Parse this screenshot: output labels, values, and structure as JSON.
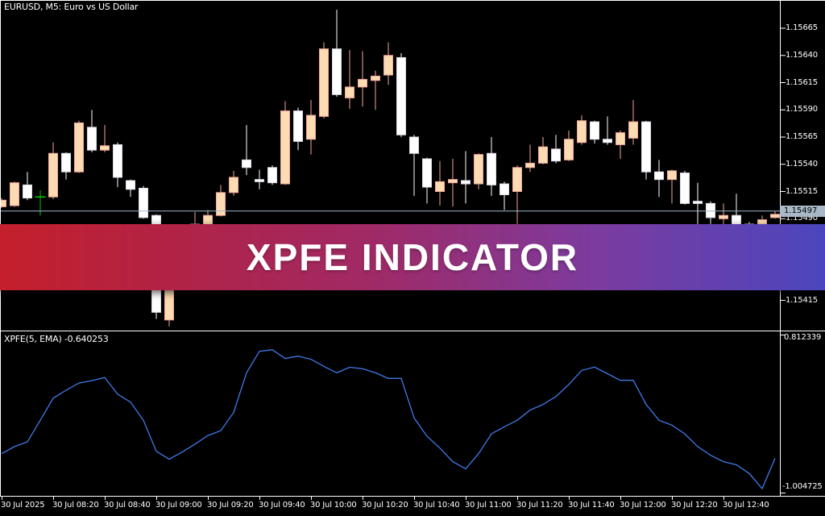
{
  "window": {
    "title": "EURUSD, M5: Euro vs US Dollar"
  },
  "banner": {
    "text": "XPFE INDICATOR",
    "gradient": [
      [
        "#C41F2B",
        "0%"
      ],
      [
        "#B02347",
        "22%"
      ],
      [
        "#A02A66",
        "45%"
      ],
      [
        "#7C3B9E",
        "72%"
      ],
      [
        "#4B46BE",
        "100%"
      ]
    ]
  },
  "colors": {
    "background": "#000000",
    "frame": "#FFFFFF",
    "text": "#FFFFFF",
    "bull_fill": "#FBDCB2",
    "bull_edge": "#F5A79C",
    "bear_fill": "#FFFFFF",
    "bear_edge": "#DCDCE8",
    "bear_wick": "#FFFFFF",
    "doji": "#00C000",
    "indicator_line": "#3E7BE8",
    "bid_line": "#A3B9CB",
    "price_tag_bg": "#A8B8C6",
    "price_tag_text": "#000000"
  },
  "main": {
    "current_price_label": "1.15497",
    "current_price": 1.15497
  },
  "indicator": {
    "label_name": "XPFE(5, EMA)",
    "label_value": "-0.640253"
  },
  "chart_data": [
    {
      "type": "candlestick",
      "title": "EURUSD, M5: Euro vs US Dollar",
      "symbol": "EURUSD",
      "timeframe": "M5",
      "grid": false,
      "y_axis": {
        "side": "right",
        "ticks": [
          1.15665,
          1.1564,
          1.15615,
          1.1559,
          1.15565,
          1.1554,
          1.15515,
          1.1549,
          1.15415
        ],
        "tick_labels": [
          "1.15665",
          "1.15640",
          "1.15615",
          "1.15590",
          "1.15565",
          "1.15540",
          "1.15515",
          "1.15490",
          "1.15415"
        ],
        "current_price": 1.15497
      },
      "x_axis": {
        "tick_labels": [
          "30 Jul 2025",
          "30 Jul 08:20",
          "30 Jul 08:40",
          "30 Jul 09:00",
          "30 Jul 09:20",
          "30 Jul 09:40",
          "30 Jul 10:00",
          "30 Jul 10:20",
          "30 Jul 10:40",
          "30 Jul 11:00",
          "30 Jul 11:20",
          "30 Jul 11:40",
          "30 Jul 12:00",
          "30 Jul 12:20",
          "30 Jul 12:40"
        ],
        "tick_candle_indices": [
          0,
          4,
          8,
          12,
          16,
          20,
          24,
          28,
          32,
          36,
          40,
          44,
          48,
          52,
          56
        ]
      },
      "candles": [
        {
          "t": "08:00",
          "o": 1.15501,
          "h": 1.15509,
          "l": 1.155,
          "c": 1.15507,
          "d": "up"
        },
        {
          "t": "08:05",
          "o": 1.15502,
          "h": 1.15524,
          "l": 1.15501,
          "c": 1.15523,
          "d": "up"
        },
        {
          "t": "08:10",
          "o": 1.15521,
          "h": 1.15533,
          "l": 1.15507,
          "c": 1.15509,
          "d": "down"
        },
        {
          "t": "08:15",
          "o": 1.1551,
          "h": 1.15516,
          "l": 1.15493,
          "c": 1.1551,
          "d": "doji"
        },
        {
          "t": "08:20",
          "o": 1.1551,
          "h": 1.1556,
          "l": 1.15508,
          "c": 1.1555,
          "d": "up"
        },
        {
          "t": "08:25",
          "o": 1.1555,
          "h": 1.15551,
          "l": 1.15526,
          "c": 1.15533,
          "d": "down"
        },
        {
          "t": "08:30",
          "o": 1.15533,
          "h": 1.1558,
          "l": 1.15532,
          "c": 1.15578,
          "d": "up"
        },
        {
          "t": "08:35",
          "o": 1.15574,
          "h": 1.1559,
          "l": 1.15551,
          "c": 1.15553,
          "d": "down"
        },
        {
          "t": "08:40",
          "o": 1.15553,
          "h": 1.15576,
          "l": 1.15551,
          "c": 1.15557,
          "d": "up"
        },
        {
          "t": "08:45",
          "o": 1.15558,
          "h": 1.1556,
          "l": 1.15519,
          "c": 1.15528,
          "d": "down"
        },
        {
          "t": "08:50",
          "o": 1.15525,
          "h": 1.15526,
          "l": 1.1551,
          "c": 1.15517,
          "d": "down"
        },
        {
          "t": "08:55",
          "o": 1.15518,
          "h": 1.1552,
          "l": 1.1549,
          "c": 1.15491,
          "d": "down"
        },
        {
          "t": "09:00",
          "o": 1.15493,
          "h": 1.15494,
          "l": 1.15398,
          "c": 1.15404,
          "d": "down"
        },
        {
          "t": "09:05",
          "o": 1.15397,
          "h": 1.15441,
          "l": 1.15391,
          "c": 1.15439,
          "d": "up"
        },
        {
          "t": "09:10",
          "o": 1.15447,
          "h": 1.15478,
          "l": 1.15445,
          "c": 1.15476,
          "d": "up"
        },
        {
          "t": "09:15",
          "o": 1.15462,
          "h": 1.15496,
          "l": 1.1546,
          "c": 1.15485,
          "d": "up"
        },
        {
          "t": "09:20",
          "o": 1.15469,
          "h": 1.15498,
          "l": 1.15467,
          "c": 1.15493,
          "d": "up"
        },
        {
          "t": "09:25",
          "o": 1.15493,
          "h": 1.15521,
          "l": 1.15492,
          "c": 1.15514,
          "d": "up"
        },
        {
          "t": "09:30",
          "o": 1.15514,
          "h": 1.15534,
          "l": 1.15511,
          "c": 1.15528,
          "d": "up"
        },
        {
          "t": "09:35",
          "o": 1.15544,
          "h": 1.15576,
          "l": 1.1553,
          "c": 1.15537,
          "d": "down"
        },
        {
          "t": "09:40",
          "o": 1.15526,
          "h": 1.15535,
          "l": 1.15517,
          "c": 1.15524,
          "d": "down"
        },
        {
          "t": "09:45",
          "o": 1.15537,
          "h": 1.15539,
          "l": 1.15521,
          "c": 1.15523,
          "d": "down"
        },
        {
          "t": "09:50",
          "o": 1.15522,
          "h": 1.15598,
          "l": 1.15521,
          "c": 1.15589,
          "d": "up"
        },
        {
          "t": "09:55",
          "o": 1.15589,
          "h": 1.15592,
          "l": 1.15553,
          "c": 1.15561,
          "d": "down"
        },
        {
          "t": "10:00",
          "o": 1.15563,
          "h": 1.15599,
          "l": 1.15549,
          "c": 1.15585,
          "d": "up"
        },
        {
          "t": "10:05",
          "o": 1.15584,
          "h": 1.15652,
          "l": 1.15582,
          "c": 1.15646,
          "d": "up"
        },
        {
          "t": "10:10",
          "o": 1.15646,
          "h": 1.15682,
          "l": 1.15602,
          "c": 1.15604,
          "d": "down"
        },
        {
          "t": "10:15",
          "o": 1.15601,
          "h": 1.15645,
          "l": 1.15591,
          "c": 1.15611,
          "d": "up"
        },
        {
          "t": "10:20",
          "o": 1.15611,
          "h": 1.15644,
          "l": 1.15593,
          "c": 1.15618,
          "d": "up"
        },
        {
          "t": "10:25",
          "o": 1.15617,
          "h": 1.15626,
          "l": 1.1559,
          "c": 1.15621,
          "d": "up"
        },
        {
          "t": "10:30",
          "o": 1.15622,
          "h": 1.15652,
          "l": 1.15613,
          "c": 1.1564,
          "d": "up"
        },
        {
          "t": "10:35",
          "o": 1.15638,
          "h": 1.15642,
          "l": 1.15565,
          "c": 1.15567,
          "d": "down"
        },
        {
          "t": "10:40",
          "o": 1.15565,
          "h": 1.15567,
          "l": 1.15511,
          "c": 1.1555,
          "d": "down"
        },
        {
          "t": "10:45",
          "o": 1.15545,
          "h": 1.15546,
          "l": 1.15504,
          "c": 1.15519,
          "d": "down"
        },
        {
          "t": "10:50",
          "o": 1.15515,
          "h": 1.15543,
          "l": 1.15502,
          "c": 1.15524,
          "d": "up"
        },
        {
          "t": "10:55",
          "o": 1.15523,
          "h": 1.15545,
          "l": 1.15501,
          "c": 1.15526,
          "d": "up"
        },
        {
          "t": "11:00",
          "o": 1.15525,
          "h": 1.15552,
          "l": 1.15504,
          "c": 1.15522,
          "d": "down"
        },
        {
          "t": "11:05",
          "o": 1.15522,
          "h": 1.1555,
          "l": 1.15517,
          "c": 1.15549,
          "d": "up"
        },
        {
          "t": "11:10",
          "o": 1.1555,
          "h": 1.15565,
          "l": 1.15511,
          "c": 1.15521,
          "d": "down"
        },
        {
          "t": "11:15",
          "o": 1.15522,
          "h": 1.15524,
          "l": 1.15498,
          "c": 1.15512,
          "d": "down"
        },
        {
          "t": "11:20",
          "o": 1.15515,
          "h": 1.15539,
          "l": 1.1548,
          "c": 1.15537,
          "d": "up"
        },
        {
          "t": "11:25",
          "o": 1.15537,
          "h": 1.15558,
          "l": 1.15533,
          "c": 1.15541,
          "d": "up"
        },
        {
          "t": "11:30",
          "o": 1.15541,
          "h": 1.15565,
          "l": 1.1554,
          "c": 1.15556,
          "d": "up"
        },
        {
          "t": "11:35",
          "o": 1.15554,
          "h": 1.15567,
          "l": 1.15541,
          "c": 1.15543,
          "d": "down"
        },
        {
          "t": "11:40",
          "o": 1.15544,
          "h": 1.15571,
          "l": 1.15543,
          "c": 1.15563,
          "d": "up"
        },
        {
          "t": "11:45",
          "o": 1.1556,
          "h": 1.15585,
          "l": 1.15558,
          "c": 1.1558,
          "d": "up"
        },
        {
          "t": "11:50",
          "o": 1.15579,
          "h": 1.1558,
          "l": 1.15559,
          "c": 1.15563,
          "d": "down"
        },
        {
          "t": "11:55",
          "o": 1.15563,
          "h": 1.15584,
          "l": 1.15558,
          "c": 1.1556,
          "d": "down"
        },
        {
          "t": "12:00",
          "o": 1.15558,
          "h": 1.15571,
          "l": 1.15545,
          "c": 1.15569,
          "d": "up"
        },
        {
          "t": "12:05",
          "o": 1.15564,
          "h": 1.15599,
          "l": 1.15558,
          "c": 1.15579,
          "d": "up"
        },
        {
          "t": "12:10",
          "o": 1.15579,
          "h": 1.1558,
          "l": 1.15526,
          "c": 1.15533,
          "d": "down"
        },
        {
          "t": "12:15",
          "o": 1.15533,
          "h": 1.15544,
          "l": 1.1551,
          "c": 1.15526,
          "d": "down"
        },
        {
          "t": "12:20",
          "o": 1.15526,
          "h": 1.15535,
          "l": 1.15504,
          "c": 1.15534,
          "d": "up"
        },
        {
          "t": "12:25",
          "o": 1.15532,
          "h": 1.15534,
          "l": 1.15503,
          "c": 1.15504,
          "d": "down"
        },
        {
          "t": "12:30",
          "o": 1.15506,
          "h": 1.15523,
          "l": 1.15482,
          "c": 1.15504,
          "d": "down"
        },
        {
          "t": "12:35",
          "o": 1.15504,
          "h": 1.15506,
          "l": 1.15481,
          "c": 1.15491,
          "d": "down"
        },
        {
          "t": "12:40",
          "o": 1.1549,
          "h": 1.15504,
          "l": 1.15484,
          "c": 1.15493,
          "d": "up"
        },
        {
          "t": "12:45",
          "o": 1.15493,
          "h": 1.15513,
          "l": 1.15482,
          "c": 1.15484,
          "d": "down"
        },
        {
          "t": "12:50",
          "o": 1.15485,
          "h": 1.15487,
          "l": 1.15476,
          "c": 1.1548,
          "d": "down"
        },
        {
          "t": "12:55",
          "o": 1.15484,
          "h": 1.15493,
          "l": 1.15482,
          "c": 1.15489,
          "d": "up"
        },
        {
          "t": "13:00",
          "o": 1.15491,
          "h": 1.15497,
          "l": 1.1549,
          "c": 1.15494,
          "d": "up"
        }
      ]
    },
    {
      "type": "line",
      "name": "XPFE",
      "params": "(5, EMA)",
      "last_value": -0.640253,
      "scale_max": 0.812339,
      "scale_min": -1.004725,
      "scale_max_label": "0.812339",
      "scale_min_label": "-1.004725",
      "values": [
        -0.584,
        -0.498,
        -0.441,
        -0.182,
        0.085,
        0.181,
        0.267,
        0.296,
        0.334,
        0.133,
        0.038,
        -0.182,
        -0.555,
        -0.651,
        -0.565,
        -0.469,
        -0.364,
        -0.307,
        -0.087,
        0.391,
        0.65,
        0.669,
        0.563,
        0.592,
        0.554,
        0.468,
        0.391,
        0.458,
        0.439,
        0.391,
        0.324,
        0.324,
        -0.154,
        -0.374,
        -0.517,
        -0.68,
        -0.766,
        -0.584,
        -0.345,
        -0.259,
        -0.182,
        -0.058,
        0.009,
        0.105,
        0.25,
        0.42,
        0.46,
        0.38,
        0.3,
        0.3,
        0.01,
        -0.182,
        -0.24,
        -0.345,
        -0.498,
        -0.603,
        -0.68,
        -0.718,
        -0.823,
        -1.004725,
        -0.640253
      ]
    }
  ]
}
